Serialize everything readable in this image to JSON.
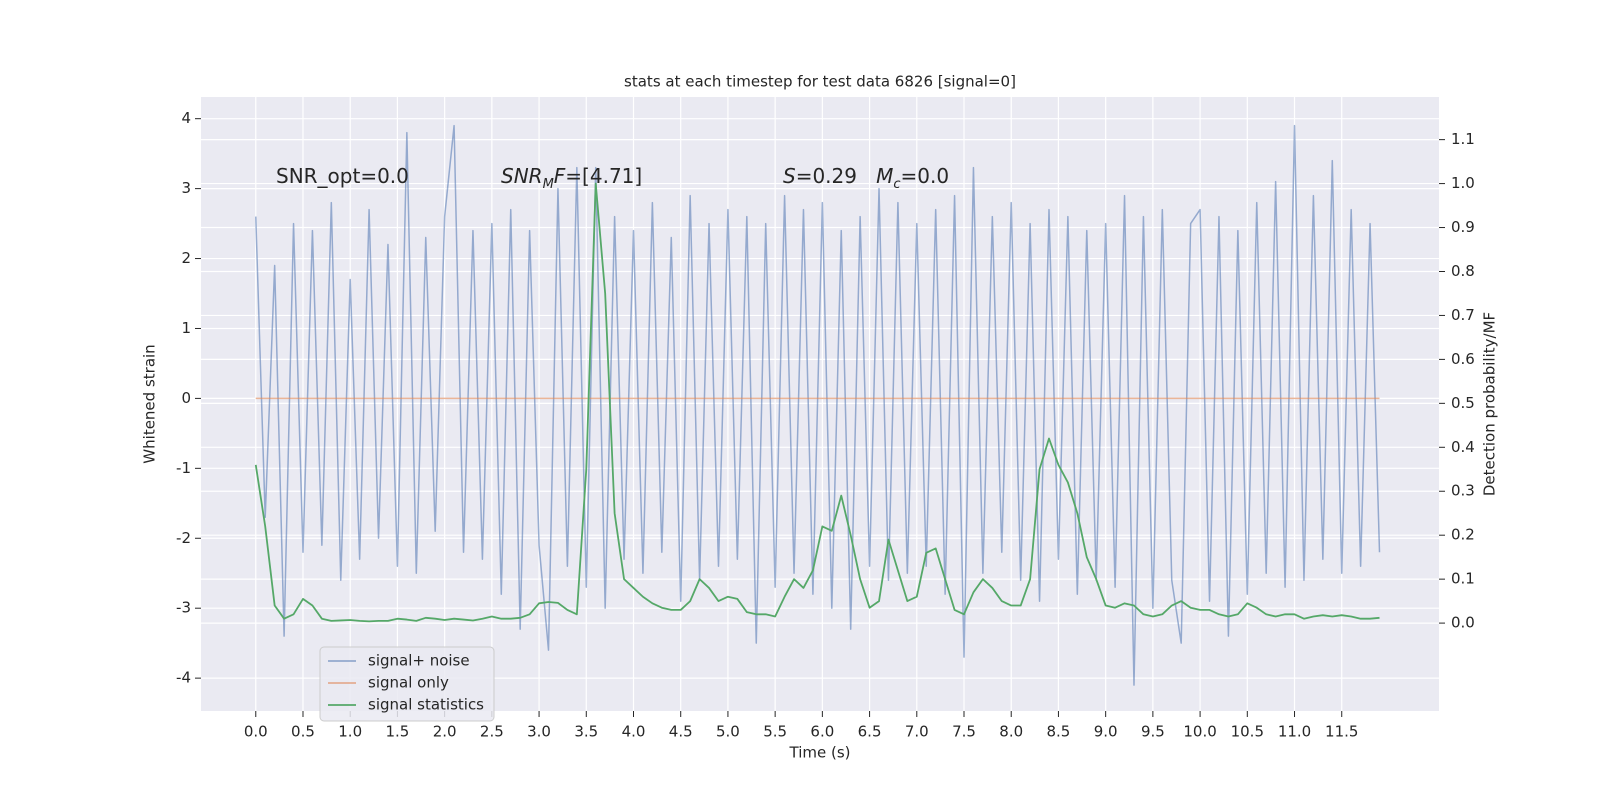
{
  "chart_data": {
    "type": "line",
    "title": "stats at each timestep for test data 6826 [signal=0]",
    "xlabel": "Time (s)",
    "ylabel": "Whitened strain",
    "y2label": "Detection probability/MF",
    "annotations": [
      {
        "parts": [
          {
            "text": "SNR_opt=0.0",
            "style": "normal"
          }
        ]
      },
      {
        "parts": [
          {
            "text": "SNR",
            "style": "italic"
          },
          {
            "text": "M",
            "style": "sub"
          },
          {
            "text": "F",
            "style": "italic"
          },
          {
            "text": "=[4.71]",
            "style": "normal"
          }
        ]
      },
      {
        "parts": [
          {
            "text": "S",
            "style": "italic"
          },
          {
            "text": "=0.29   ",
            "style": "normal"
          },
          {
            "text": "M",
            "style": "italic"
          },
          {
            "text": "c",
            "style": "sub"
          },
          {
            "text": "=0.0",
            "style": "normal"
          }
        ]
      }
    ],
    "x": [
      0.0,
      0.1,
      0.2,
      0.3,
      0.4,
      0.5,
      0.6,
      0.7,
      0.8,
      0.9,
      1.0,
      1.1,
      1.2,
      1.3,
      1.4,
      1.5,
      1.6,
      1.7,
      1.8,
      1.9,
      2.0,
      2.1,
      2.2,
      2.3,
      2.4,
      2.5,
      2.6,
      2.7,
      2.8,
      2.9,
      3.0,
      3.1,
      3.2,
      3.3,
      3.4,
      3.5,
      3.6,
      3.7,
      3.8,
      3.9,
      4.0,
      4.1,
      4.2,
      4.3,
      4.4,
      4.5,
      4.6,
      4.7,
      4.8,
      4.9,
      5.0,
      5.1,
      5.2,
      5.3,
      5.4,
      5.5,
      5.6,
      5.7,
      5.8,
      5.9,
      6.0,
      6.1,
      6.2,
      6.3,
      6.4,
      6.5,
      6.6,
      6.7,
      6.8,
      6.9,
      7.0,
      7.1,
      7.2,
      7.3,
      7.4,
      7.5,
      7.6,
      7.7,
      7.8,
      7.9,
      8.0,
      8.1,
      8.2,
      8.3,
      8.4,
      8.5,
      8.6,
      8.7,
      8.8,
      8.9,
      9.0,
      9.1,
      9.2,
      9.3,
      9.4,
      9.5,
      9.6,
      9.7,
      9.8,
      9.9,
      10.0,
      10.1,
      10.2,
      10.3,
      10.4,
      10.5,
      10.6,
      10.7,
      10.8,
      10.9,
      11.0,
      11.1,
      11.2,
      11.3,
      11.4,
      11.5,
      11.6,
      11.7,
      11.8,
      11.9
    ],
    "series": [
      {
        "name": "signal+ noise",
        "color": "#4c72b0",
        "opacity": 0.55,
        "axis": "y",
        "values": [
          2.6,
          -1.7,
          1.9,
          -3.4,
          2.5,
          -2.2,
          2.4,
          -2.1,
          2.8,
          -2.6,
          1.7,
          -2.3,
          2.7,
          -2.0,
          2.2,
          -2.4,
          3.8,
          -2.5,
          2.3,
          -1.9,
          2.6,
          3.9,
          -2.2,
          2.4,
          -2.3,
          2.5,
          -2.8,
          2.7,
          -3.3,
          2.4,
          -2.1,
          -3.6,
          3.0,
          -2.4,
          3.3,
          -2.7,
          3.3,
          -3.0,
          2.6,
          -2.3,
          2.4,
          -2.5,
          2.8,
          -2.2,
          2.3,
          -2.9,
          2.9,
          -2.6,
          2.5,
          -2.4,
          2.7,
          -2.3,
          2.6,
          -3.5,
          2.5,
          -2.7,
          2.9,
          -2.5,
          2.7,
          -2.8,
          2.8,
          -3.0,
          2.4,
          -3.3,
          2.6,
          -2.4,
          3.0,
          -2.6,
          2.8,
          -2.5,
          2.5,
          -2.4,
          2.7,
          -2.8,
          2.9,
          -3.7,
          3.3,
          -2.5,
          2.6,
          -2.2,
          2.8,
          -2.6,
          2.5,
          -2.9,
          2.7,
          -2.3,
          2.6,
          -2.8,
          2.4,
          -2.6,
          2.5,
          -2.7,
          2.9,
          -4.1,
          2.6,
          -3.0,
          2.7,
          -2.6,
          -3.5,
          2.5,
          2.7,
          -2.9,
          2.6,
          -3.4,
          2.4,
          -2.8,
          2.8,
          -2.5,
          3.1,
          -2.7,
          3.9,
          -2.6,
          2.9,
          -2.3,
          3.4,
          -2.5,
          2.7,
          -2.4,
          2.5,
          -2.2
        ]
      },
      {
        "name": "signal only",
        "color": "#dd8452",
        "opacity": 0.6,
        "axis": "y",
        "values": [
          0,
          0,
          0,
          0,
          0,
          0,
          0,
          0,
          0,
          0,
          0,
          0,
          0,
          0,
          0,
          0,
          0,
          0,
          0,
          0,
          0,
          0,
          0,
          0,
          0,
          0,
          0,
          0,
          0,
          0,
          0,
          0,
          0,
          0,
          0,
          0,
          0,
          0,
          0,
          0,
          0,
          0,
          0,
          0,
          0,
          0,
          0,
          0,
          0,
          0,
          0,
          0,
          0,
          0,
          0,
          0,
          0,
          0,
          0,
          0,
          0,
          0,
          0,
          0,
          0,
          0,
          0,
          0,
          0,
          0,
          0,
          0,
          0,
          0,
          0,
          0,
          0,
          0,
          0,
          0,
          0,
          0,
          0,
          0,
          0,
          0,
          0,
          0,
          0,
          0,
          0,
          0,
          0,
          0,
          0,
          0,
          0,
          0,
          0,
          0,
          0,
          0,
          0,
          0,
          0,
          0,
          0,
          0,
          0,
          0,
          0,
          0,
          0,
          0,
          0,
          0,
          0,
          0,
          0,
          0
        ]
      },
      {
        "name": "signal statistics",
        "color": "#55a868",
        "opacity": 1,
        "axis": "y2",
        "values": [
          0.36,
          0.22,
          0.04,
          0.01,
          0.02,
          0.055,
          0.04,
          0.01,
          0.005,
          0.006,
          0.007,
          0.005,
          0.004,
          0.005,
          0.005,
          0.01,
          0.008,
          0.005,
          0.012,
          0.01,
          0.007,
          0.01,
          0.008,
          0.006,
          0.01,
          0.015,
          0.01,
          0.01,
          0.012,
          0.02,
          0.045,
          0.048,
          0.046,
          0.03,
          0.02,
          0.35,
          1.0,
          0.75,
          0.25,
          0.1,
          0.08,
          0.06,
          0.045,
          0.035,
          0.03,
          0.03,
          0.05,
          0.1,
          0.08,
          0.05,
          0.06,
          0.055,
          0.025,
          0.02,
          0.02,
          0.015,
          0.06,
          0.1,
          0.08,
          0.12,
          0.22,
          0.21,
          0.29,
          0.2,
          0.1,
          0.035,
          0.05,
          0.19,
          0.12,
          0.05,
          0.06,
          0.16,
          0.17,
          0.1,
          0.03,
          0.02,
          0.07,
          0.1,
          0.08,
          0.05,
          0.04,
          0.04,
          0.1,
          0.35,
          0.42,
          0.36,
          0.32,
          0.25,
          0.15,
          0.1,
          0.04,
          0.035,
          0.045,
          0.04,
          0.02,
          0.015,
          0.02,
          0.04,
          0.05,
          0.035,
          0.03,
          0.03,
          0.02,
          0.015,
          0.02,
          0.045,
          0.035,
          0.02,
          0.015,
          0.02,
          0.02,
          0.01,
          0.015,
          0.018,
          0.015,
          0.018,
          0.015,
          0.01,
          0.01,
          0.012
        ]
      }
    ],
    "xlim": [
      -0.58,
      12.53
    ],
    "xticks": [
      {
        "value": 0,
        "label": "0.0"
      },
      0.5,
      {
        "value": 1,
        "label": "1.0"
      },
      1.5,
      {
        "value": 2,
        "label": "2.0"
      },
      2.5,
      {
        "value": 3,
        "label": "3.0"
      },
      3.5,
      {
        "value": 4,
        "label": "4.0"
      },
      4.5,
      {
        "value": 5,
        "label": "5.0"
      },
      5.5,
      {
        "value": 6,
        "label": "6.0"
      },
      6.5,
      {
        "value": 7,
        "label": "7.0"
      },
      7.5,
      {
        "value": 8,
        "label": "8.0"
      },
      8.5,
      {
        "value": 9,
        "label": "9.0"
      },
      9.5,
      {
        "value": 10,
        "label": "10.0"
      },
      10.5,
      {
        "value": 11,
        "label": "11.0"
      },
      11.5
    ],
    "ylim": [
      -4.47,
      4.31
    ],
    "yticks": [
      -4,
      -3,
      -2,
      -1,
      0,
      1,
      2,
      3,
      4
    ],
    "y2lim": [
      -0.2,
      1.197
    ],
    "y2ticks": [
      {
        "value": 0,
        "label": "0.0"
      },
      0.1,
      0.2,
      0.3,
      0.4,
      0.5,
      0.6,
      0.7,
      0.8,
      0.9,
      {
        "value": 1,
        "label": "1.0"
      },
      1.1
    ],
    "grid": true,
    "legend": "lower left"
  }
}
